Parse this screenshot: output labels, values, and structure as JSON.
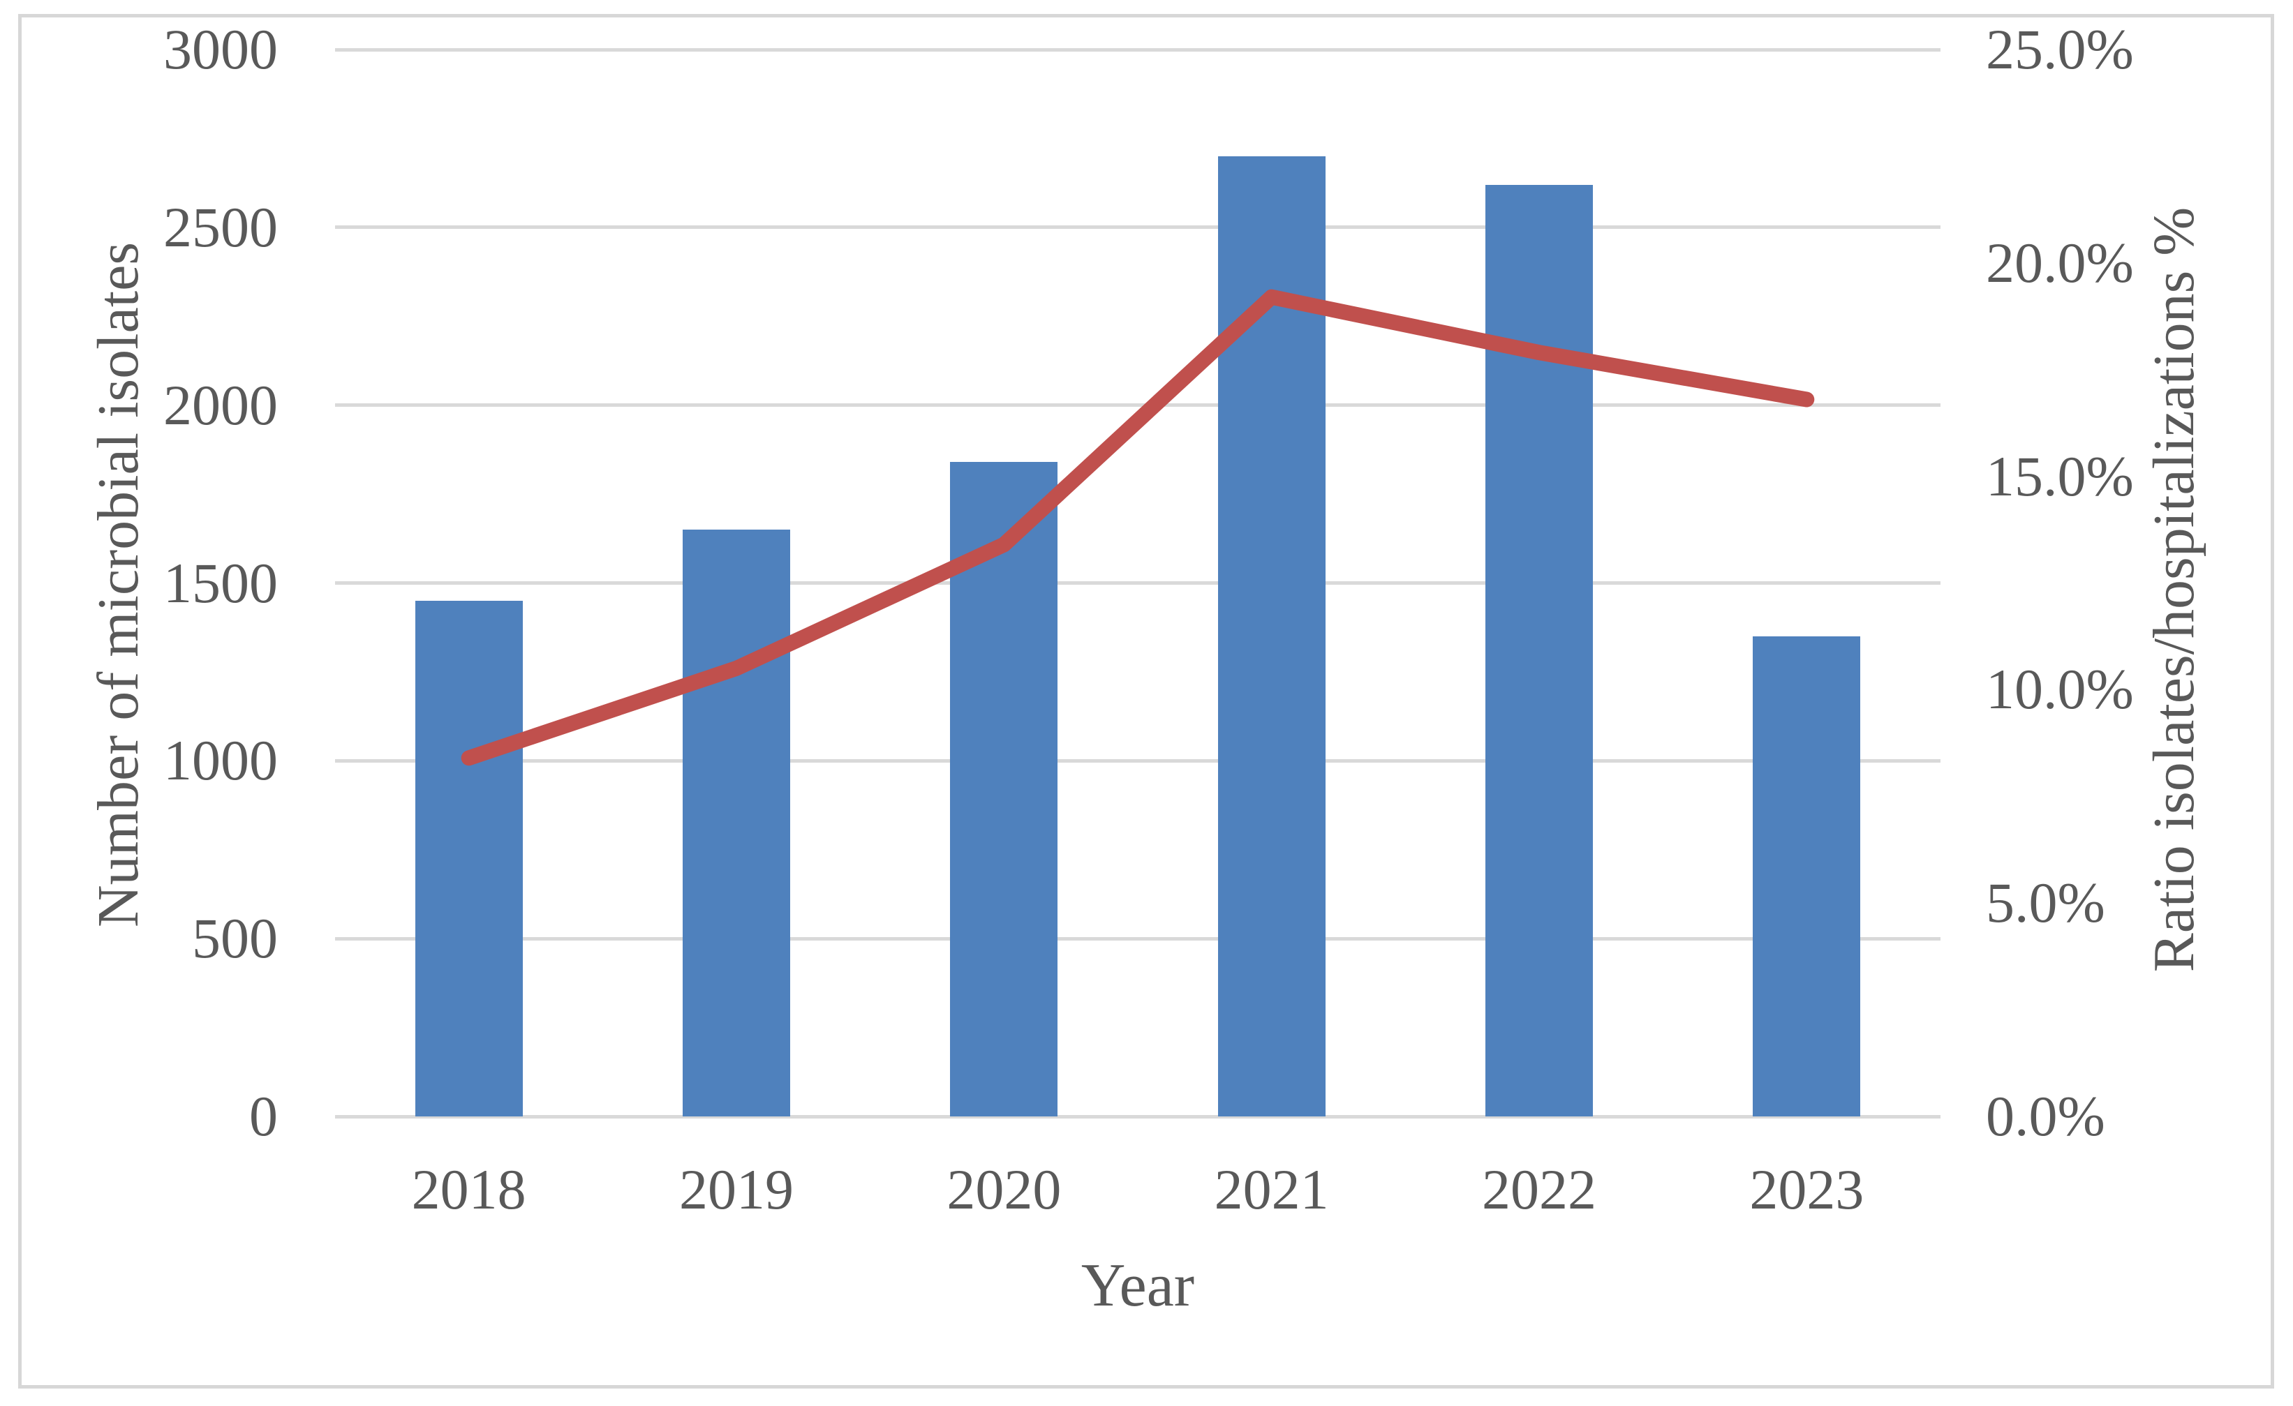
{
  "figure": {
    "background": "#ffffff",
    "border_color": "#d7d7d7",
    "text_color": "#595959",
    "gridline_color": "#d9d9d9"
  },
  "chart_data": {
    "type": "combo",
    "categories": [
      "2018",
      "2019",
      "2020",
      "2021",
      "2022",
      "2023"
    ],
    "series": [
      {
        "name": "Number of microbial isolates",
        "type": "bar",
        "axis": "left",
        "color": "#4f81bd",
        "values": [
          1450,
          1650,
          1840,
          2700,
          2620,
          1350
        ]
      },
      {
        "name": "Ratio isolates/hospitalizations %",
        "type": "line",
        "axis": "right",
        "color": "#c0504d",
        "values": [
          8.4,
          10.5,
          13.4,
          19.2,
          17.9,
          16.8
        ]
      }
    ],
    "left_axis": {
      "title": "Number of microbial isolates",
      "min": 0,
      "max": 3000,
      "tick_values": [
        3000,
        2500,
        2000,
        1500,
        1000,
        500,
        0
      ],
      "tick_labels": [
        "3000",
        "2500",
        "2000",
        "1500",
        "1000",
        "500",
        "0"
      ]
    },
    "right_axis": {
      "title": "Ratio isolates/hospitalizations %",
      "min": 0,
      "max": 25,
      "tick_values": [
        25,
        20,
        15,
        10,
        5,
        0
      ],
      "tick_labels": [
        "25.0%",
        "20.0%",
        "15.0%",
        "10.0%",
        "5.0%",
        "0.0%"
      ]
    },
    "x_axis": {
      "title": "Year",
      "tick_labels": [
        "2018",
        "2019",
        "2020",
        "2021",
        "2022",
        "2023"
      ]
    },
    "grid": true,
    "legend": "none"
  }
}
